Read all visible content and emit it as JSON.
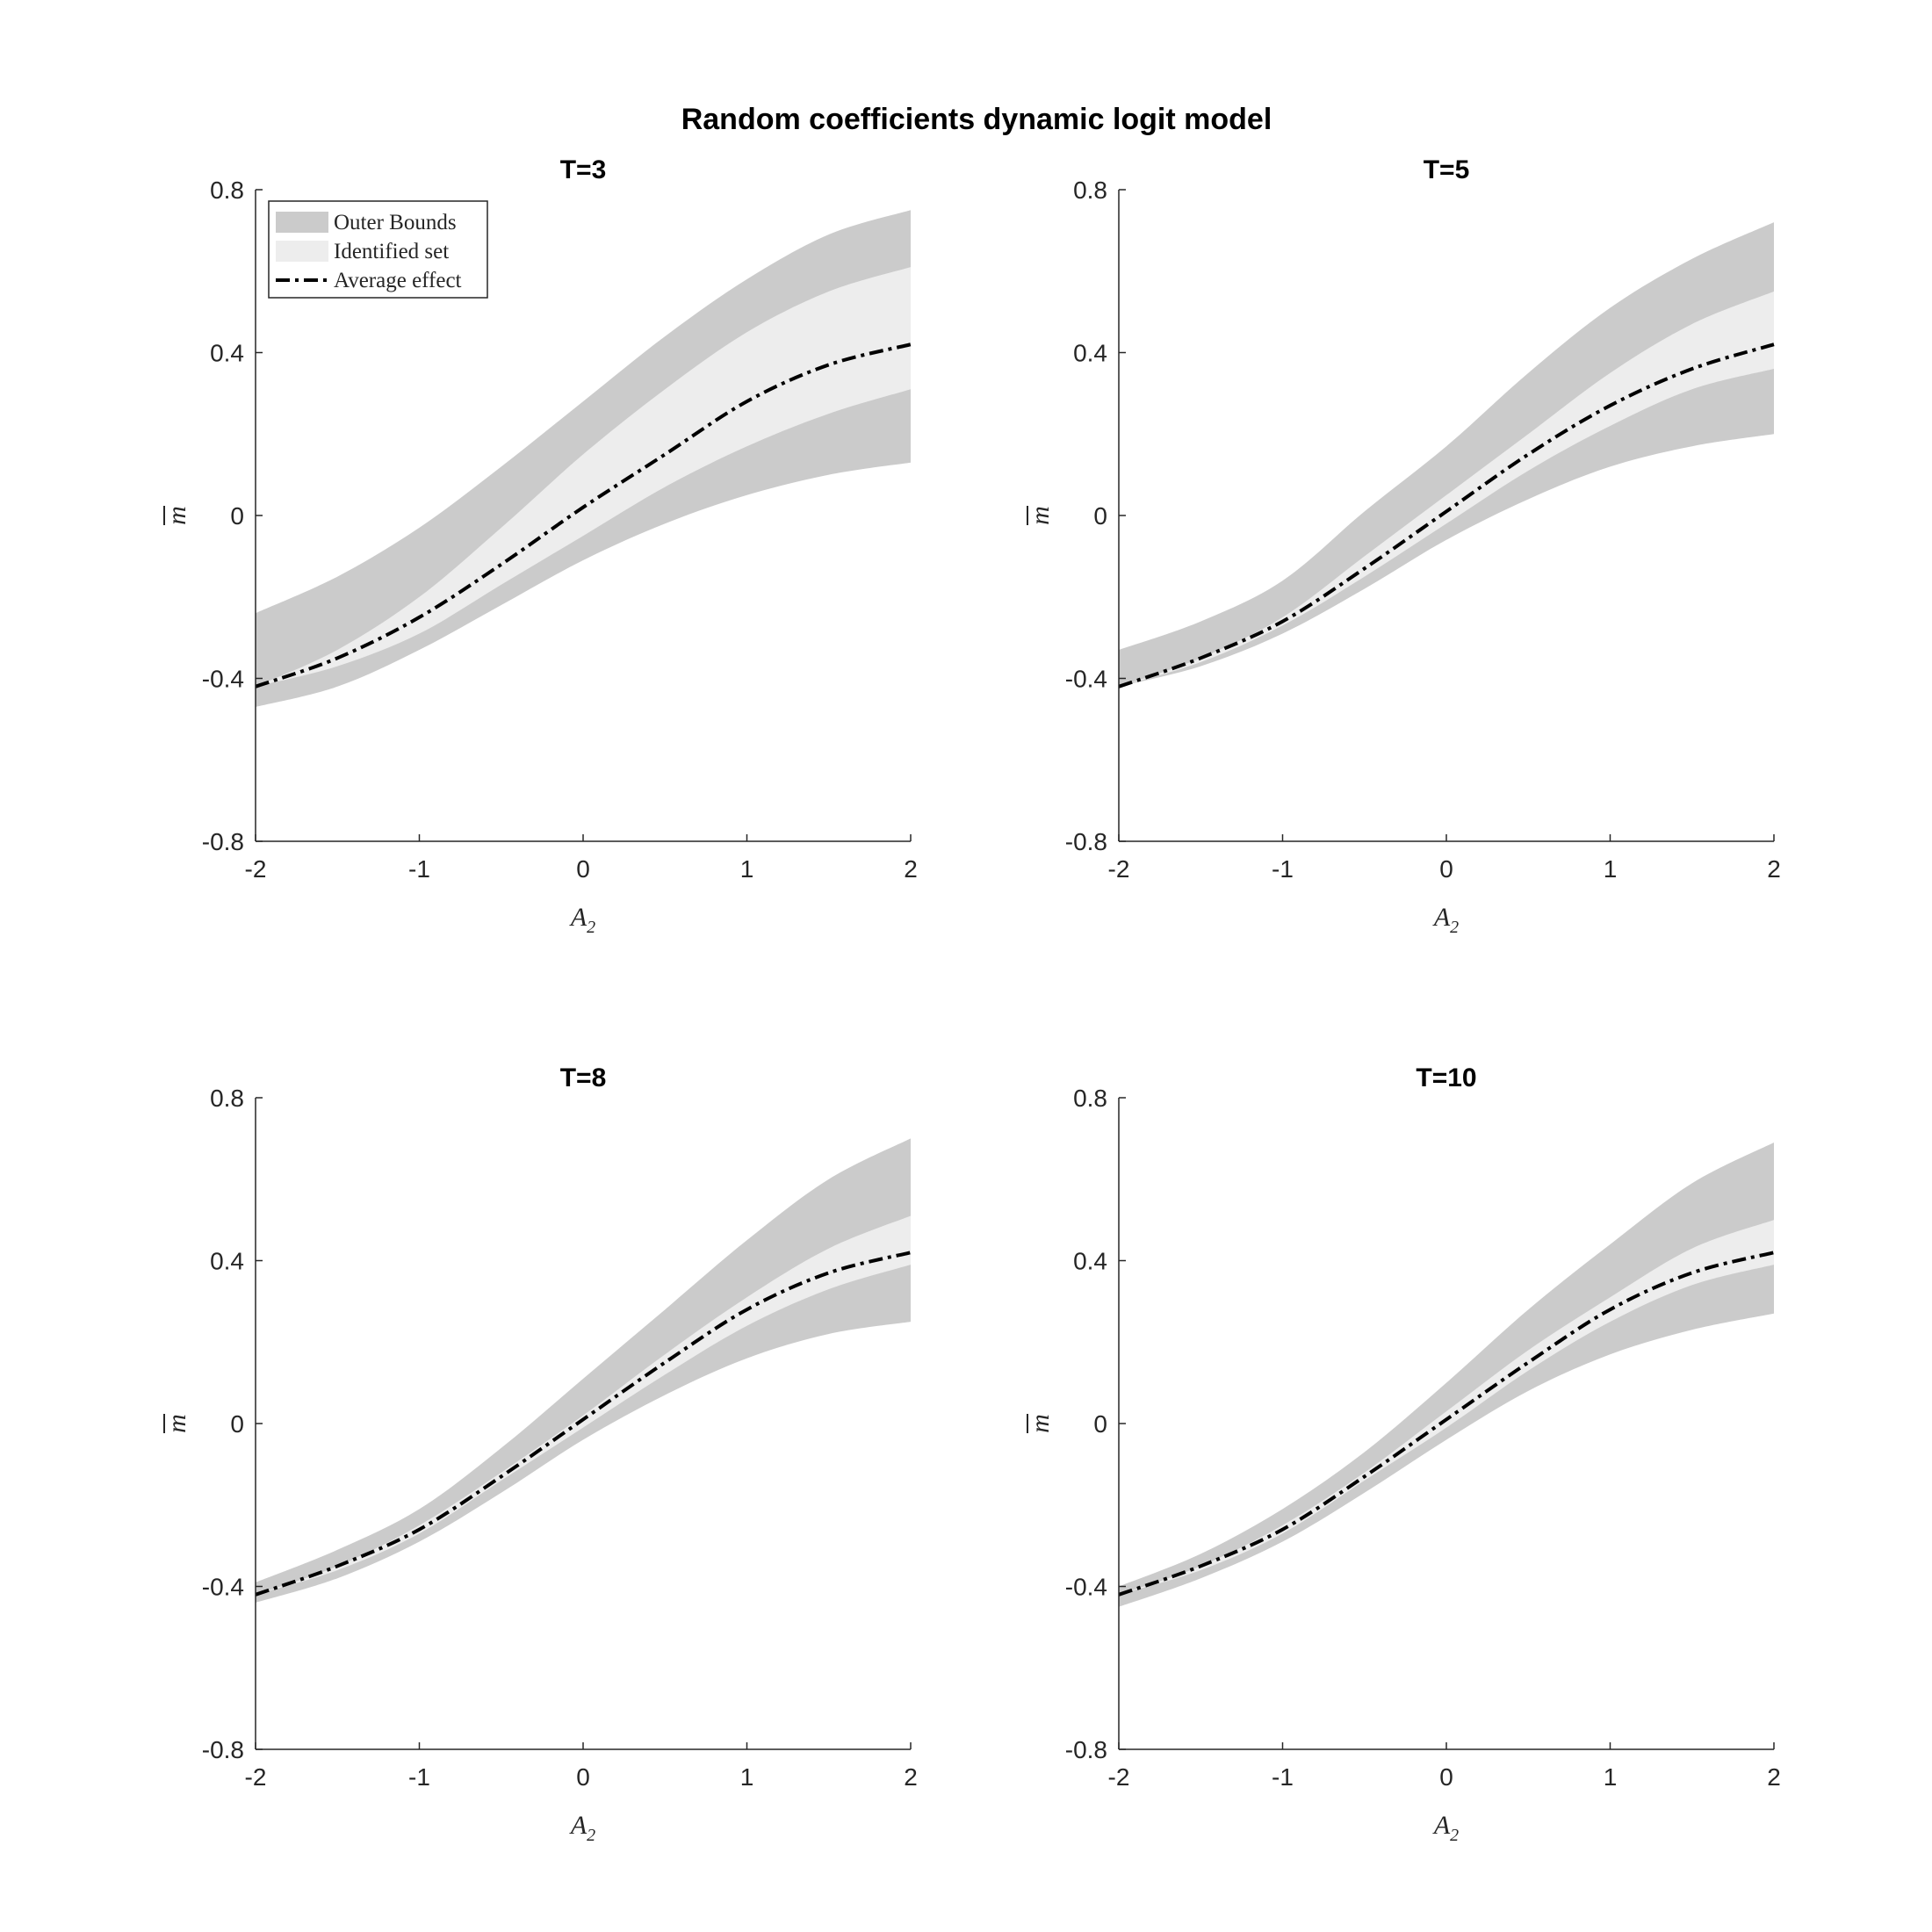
{
  "figure": {
    "title": "Random coefficients dynamic logit model"
  },
  "colors": {
    "outer": "#cbcbcb",
    "identified": "#ededed",
    "average": "#000000",
    "axis": "#262626"
  },
  "legend": {
    "placement": "top-left of first panel",
    "entries": [
      "Outer Bounds",
      "Identified set",
      "Average effect"
    ]
  },
  "chart_data": [
    {
      "type": "area",
      "title": "T=3",
      "xlabel": "A",
      "xlabel_sub": "2",
      "ylabel": "m",
      "xlim": [
        -2,
        2
      ],
      "ylim": [
        -0.8,
        0.8
      ],
      "xticks": [
        "-2",
        "-1",
        "0",
        "1",
        "2"
      ],
      "yticks": [
        "-0.8",
        "-0.4",
        "0",
        "0.4",
        "0.8"
      ],
      "grid": false,
      "x": [
        -2,
        -1.5,
        -1,
        -0.5,
        0,
        0.5,
        1,
        1.5,
        2
      ],
      "series": [
        {
          "name": "Outer Bounds",
          "lower": [
            -0.47,
            -0.42,
            -0.33,
            -0.22,
            -0.11,
            -0.02,
            0.05,
            0.1,
            0.13
          ],
          "upper": [
            -0.24,
            -0.15,
            -0.03,
            0.12,
            0.28,
            0.44,
            0.58,
            0.69,
            0.75
          ]
        },
        {
          "name": "Identified set",
          "lower": [
            -0.42,
            -0.37,
            -0.29,
            -0.17,
            -0.05,
            0.07,
            0.17,
            0.25,
            0.31
          ],
          "upper": [
            -0.42,
            -0.33,
            -0.2,
            -0.03,
            0.15,
            0.31,
            0.45,
            0.55,
            0.61
          ]
        },
        {
          "name": "Average effect",
          "values": [
            -0.42,
            -0.35,
            -0.25,
            -0.12,
            0.02,
            0.15,
            0.28,
            0.37,
            0.42
          ]
        }
      ]
    },
    {
      "type": "area",
      "title": "T=5",
      "xlabel": "A",
      "xlabel_sub": "2",
      "ylabel": "m",
      "xlim": [
        -2,
        2
      ],
      "ylim": [
        -0.8,
        0.8
      ],
      "xticks": [
        "-2",
        "-1",
        "0",
        "1",
        "2"
      ],
      "yticks": [
        "-0.8",
        "-0.4",
        "0",
        "0.4",
        "0.8"
      ],
      "grid": false,
      "x": [
        -2,
        -1.5,
        -1,
        -0.5,
        0,
        0.5,
        1,
        1.5,
        2
      ],
      "series": [
        {
          "name": "Outer Bounds",
          "lower": [
            -0.42,
            -0.37,
            -0.29,
            -0.18,
            -0.06,
            0.04,
            0.12,
            0.17,
            0.2
          ],
          "upper": [
            -0.33,
            -0.26,
            -0.16,
            0.01,
            0.17,
            0.35,
            0.51,
            0.63,
            0.72
          ]
        },
        {
          "name": "Identified set",
          "lower": [
            -0.42,
            -0.36,
            -0.27,
            -0.15,
            -0.02,
            0.11,
            0.22,
            0.31,
            0.36
          ],
          "upper": [
            -0.42,
            -0.35,
            -0.25,
            -0.1,
            0.05,
            0.2,
            0.35,
            0.47,
            0.55
          ]
        },
        {
          "name": "Average effect",
          "values": [
            -0.42,
            -0.35,
            -0.26,
            -0.13,
            0.01,
            0.15,
            0.27,
            0.36,
            0.42
          ]
        }
      ]
    },
    {
      "type": "area",
      "title": "T=8",
      "xlabel": "A",
      "xlabel_sub": "2",
      "ylabel": "m",
      "xlim": [
        -2,
        2
      ],
      "ylim": [
        -0.8,
        0.8
      ],
      "xticks": [
        "-2",
        "-1",
        "0",
        "1",
        "2"
      ],
      "yticks": [
        "-0.8",
        "-0.4",
        "0",
        "0.4",
        "0.8"
      ],
      "grid": false,
      "x": [
        -2,
        -1.5,
        -1,
        -0.5,
        0,
        0.5,
        1,
        1.5,
        2
      ],
      "series": [
        {
          "name": "Outer Bounds",
          "lower": [
            -0.44,
            -0.38,
            -0.29,
            -0.17,
            -0.04,
            0.07,
            0.16,
            0.22,
            0.25
          ],
          "upper": [
            -0.39,
            -0.31,
            -0.21,
            -0.06,
            0.11,
            0.28,
            0.45,
            0.6,
            0.7
          ]
        },
        {
          "name": "Identified set",
          "lower": [
            -0.42,
            -0.36,
            -0.27,
            -0.14,
            -0.01,
            0.12,
            0.24,
            0.33,
            0.39
          ],
          "upper": [
            -0.42,
            -0.35,
            -0.25,
            -0.12,
            0.02,
            0.17,
            0.31,
            0.43,
            0.51
          ]
        },
        {
          "name": "Average effect",
          "values": [
            -0.42,
            -0.35,
            -0.26,
            -0.13,
            0.01,
            0.15,
            0.28,
            0.37,
            0.42
          ]
        }
      ]
    },
    {
      "type": "area",
      "title": "T=10",
      "xlabel": "A",
      "xlabel_sub": "2",
      "ylabel": "m",
      "xlim": [
        -2,
        2
      ],
      "ylim": [
        -0.8,
        0.8
      ],
      "xticks": [
        "-2",
        "-1",
        "0",
        "1",
        "2"
      ],
      "yticks": [
        "-0.8",
        "-0.4",
        "0",
        "0.4",
        "0.8"
      ],
      "grid": false,
      "x": [
        -2,
        -1.5,
        -1,
        -0.5,
        0,
        0.5,
        1,
        1.5,
        2
      ],
      "series": [
        {
          "name": "Outer Bounds",
          "lower": [
            -0.45,
            -0.38,
            -0.29,
            -0.17,
            -0.04,
            0.08,
            0.17,
            0.23,
            0.27
          ],
          "upper": [
            -0.4,
            -0.32,
            -0.21,
            -0.07,
            0.1,
            0.28,
            0.44,
            0.59,
            0.69
          ]
        },
        {
          "name": "Identified set",
          "lower": [
            -0.42,
            -0.36,
            -0.27,
            -0.14,
            -0.01,
            0.13,
            0.25,
            0.34,
            0.39
          ],
          "upper": [
            -0.42,
            -0.35,
            -0.25,
            -0.12,
            0.03,
            0.18,
            0.31,
            0.43,
            0.5
          ]
        },
        {
          "name": "Average effect",
          "values": [
            -0.42,
            -0.35,
            -0.26,
            -0.13,
            0.01,
            0.15,
            0.28,
            0.37,
            0.42
          ]
        }
      ]
    }
  ]
}
